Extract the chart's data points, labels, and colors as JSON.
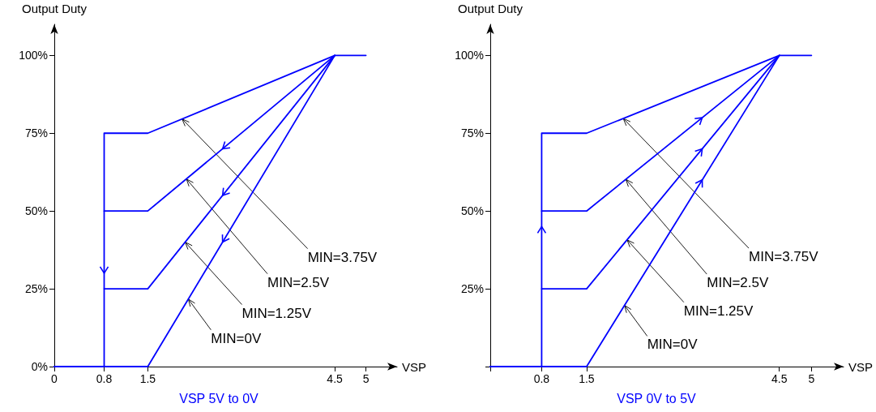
{
  "chart_data": [
    {
      "type": "line",
      "title": "VSP 5V to 0V",
      "xlabel": "VSP",
      "ylabel": "Output Duty",
      "series": [
        {
          "color": "#0000ff",
          "x": [
            5,
            4.5,
            1.5,
            0.8,
            0.8,
            0
          ],
          "values": [
            100,
            100,
            75,
            75,
            0,
            0
          ]
        },
        {
          "color": "#0000ff",
          "x": [
            4.5,
            1.5,
            0.8
          ],
          "values": [
            100,
            50,
            50
          ]
        },
        {
          "color": "#0000ff",
          "x": [
            4.5,
            1.5,
            0.8
          ],
          "values": [
            100,
            25,
            25
          ]
        },
        {
          "color": "#0000ff",
          "x": [
            4.5,
            1.5,
            0
          ],
          "values": [
            100,
            0,
            0
          ]
        }
      ],
      "xlim": [
        0,
        5.5
      ],
      "xticks": [
        0,
        0.8,
        1.5,
        4.5,
        5
      ],
      "ylim": [
        0,
        110
      ],
      "yticks": [
        {
          "value": 0,
          "label": "0%"
        },
        {
          "value": 25,
          "label": "25%"
        },
        {
          "value": 50,
          "label": "50%"
        },
        {
          "value": 75,
          "label": "75%"
        },
        {
          "value": 100,
          "label": "100%"
        }
      ],
      "annotations": [
        {
          "text": "MIN=3.75V",
          "x": 2.05,
          "y": 79.6
        },
        {
          "text": "MIN=2.5V",
          "x": 2.12,
          "y": 60.3
        },
        {
          "text": "MIN=1.25V",
          "x": 2.1,
          "y": 40
        },
        {
          "text": "MIN=0V",
          "x": 2.15,
          "y": 21.7
        }
      ],
      "grid": false,
      "marker": "none",
      "line_style": "solid"
    },
    {
      "type": "line",
      "title": "VSP 0V to 5V",
      "xlabel": "VSP",
      "ylabel": "Output Duty",
      "series": [
        {
          "color": "#0000ff",
          "x": [
            0,
            0.8,
            0.8,
            1.5,
            4.5,
            5
          ],
          "values": [
            0,
            0,
            75,
            75,
            100,
            100
          ]
        },
        {
          "color": "#0000ff",
          "x": [
            0.8,
            1.5,
            4.5
          ],
          "values": [
            50,
            50,
            100
          ]
        },
        {
          "color": "#0000ff",
          "x": [
            0.8,
            1.5,
            4.5
          ],
          "values": [
            25,
            25,
            100
          ]
        },
        {
          "color": "#0000ff",
          "x": [
            0,
            1.5,
            4.5
          ],
          "values": [
            0,
            0,
            100
          ]
        }
      ],
      "xlim": [
        0,
        5.5
      ],
      "xticks": [
        {
          "value": 0,
          "label": null
        },
        0.8,
        1.5,
        4.5,
        5
      ],
      "ylim": [
        0,
        110
      ],
      "yticks": [
        {
          "value": 0,
          "label": null
        },
        {
          "value": 25,
          "label": "25%"
        },
        {
          "value": 50,
          "label": "50%"
        },
        {
          "value": 75,
          "label": "75%"
        },
        {
          "value": 100,
          "label": "100%"
        }
      ],
      "annotations": [
        {
          "text": "MIN=3.75V",
          "x": 2.07,
          "y": 79.75
        },
        {
          "text": "MIN=2.5V",
          "x": 2.11,
          "y": 60.2
        },
        {
          "text": "MIN=1.25V",
          "x": 2.13,
          "y": 40.75
        },
        {
          "text": "MIN=0V",
          "x": 2.09,
          "y": 19.7
        }
      ],
      "grid": false,
      "marker": "none",
      "line_style": "solid"
    }
  ]
}
